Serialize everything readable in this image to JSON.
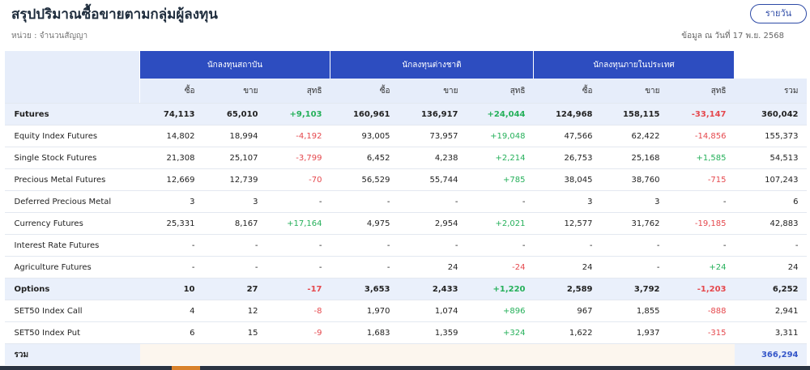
{
  "header": {
    "title": "สรุปปริมาณซื้อขายตามกลุ่มผู้ลงทุน",
    "unit": "หน่วย : จำนวนสัญญา",
    "button": "รายวัน",
    "as_of": "ข้อมูล ณ วันที่ 17 พ.ย. 2568"
  },
  "table": {
    "groups": [
      "นักลงทุนสถาบัน",
      "นักลงทุนต่างชาติ",
      "นักลงทุนภายในประเทศ"
    ],
    "columns": [
      "ซื้อ",
      "ขาย",
      "สุทธิ",
      "ซื้อ",
      "ขาย",
      "สุทธิ",
      "ซื้อ",
      "ขาย",
      "สุทธิ"
    ],
    "total_header": "รวม",
    "rows": [
      [
        "Futures",
        "74,113",
        "65,010",
        "+9,103",
        "160,961",
        "136,917",
        "+24,044",
        "124,968",
        "158,115",
        "-33,147",
        "360,042"
      ],
      [
        "Equity Index Futures",
        "14,802",
        "18,994",
        "-4,192",
        "93,005",
        "73,957",
        "+19,048",
        "47,566",
        "62,422",
        "-14,856",
        "155,373"
      ],
      [
        "Single Stock Futures",
        "21,308",
        "25,107",
        "-3,799",
        "6,452",
        "4,238",
        "+2,214",
        "26,753",
        "25,168",
        "+1,585",
        "54,513"
      ],
      [
        "Precious Metal Futures",
        "12,669",
        "12,739",
        "-70",
        "56,529",
        "55,744",
        "+785",
        "38,045",
        "38,760",
        "-715",
        "107,243"
      ],
      [
        "Deferred Precious Metal",
        "3",
        "3",
        "-",
        "-",
        "-",
        "-",
        "3",
        "3",
        "-",
        "6"
      ],
      [
        "Currency Futures",
        "25,331",
        "8,167",
        "+17,164",
        "4,975",
        "2,954",
        "+2,021",
        "12,577",
        "31,762",
        "-19,185",
        "42,883"
      ],
      [
        "Interest Rate Futures",
        "-",
        "-",
        "-",
        "-",
        "-",
        "-",
        "-",
        "-",
        "-",
        "-"
      ],
      [
        "Agriculture Futures",
        "-",
        "-",
        "-",
        "-",
        "24",
        "-24",
        "24",
        "-",
        "+24",
        "24"
      ],
      [
        "Options",
        "10",
        "27",
        "-17",
        "3,653",
        "2,433",
        "+1,220",
        "2,589",
        "3,792",
        "-1,203",
        "6,252"
      ],
      [
        "SET50 Index Call",
        "4",
        "12",
        "-8",
        "1,970",
        "1,074",
        "+896",
        "967",
        "1,855",
        "-888",
        "2,941"
      ],
      [
        "SET50 Index Put",
        "6",
        "15",
        "-9",
        "1,683",
        "1,359",
        "+324",
        "1,622",
        "1,937",
        "-315",
        "3,311"
      ]
    ],
    "footer": {
      "label": "รวม",
      "total": "366,294"
    }
  }
}
